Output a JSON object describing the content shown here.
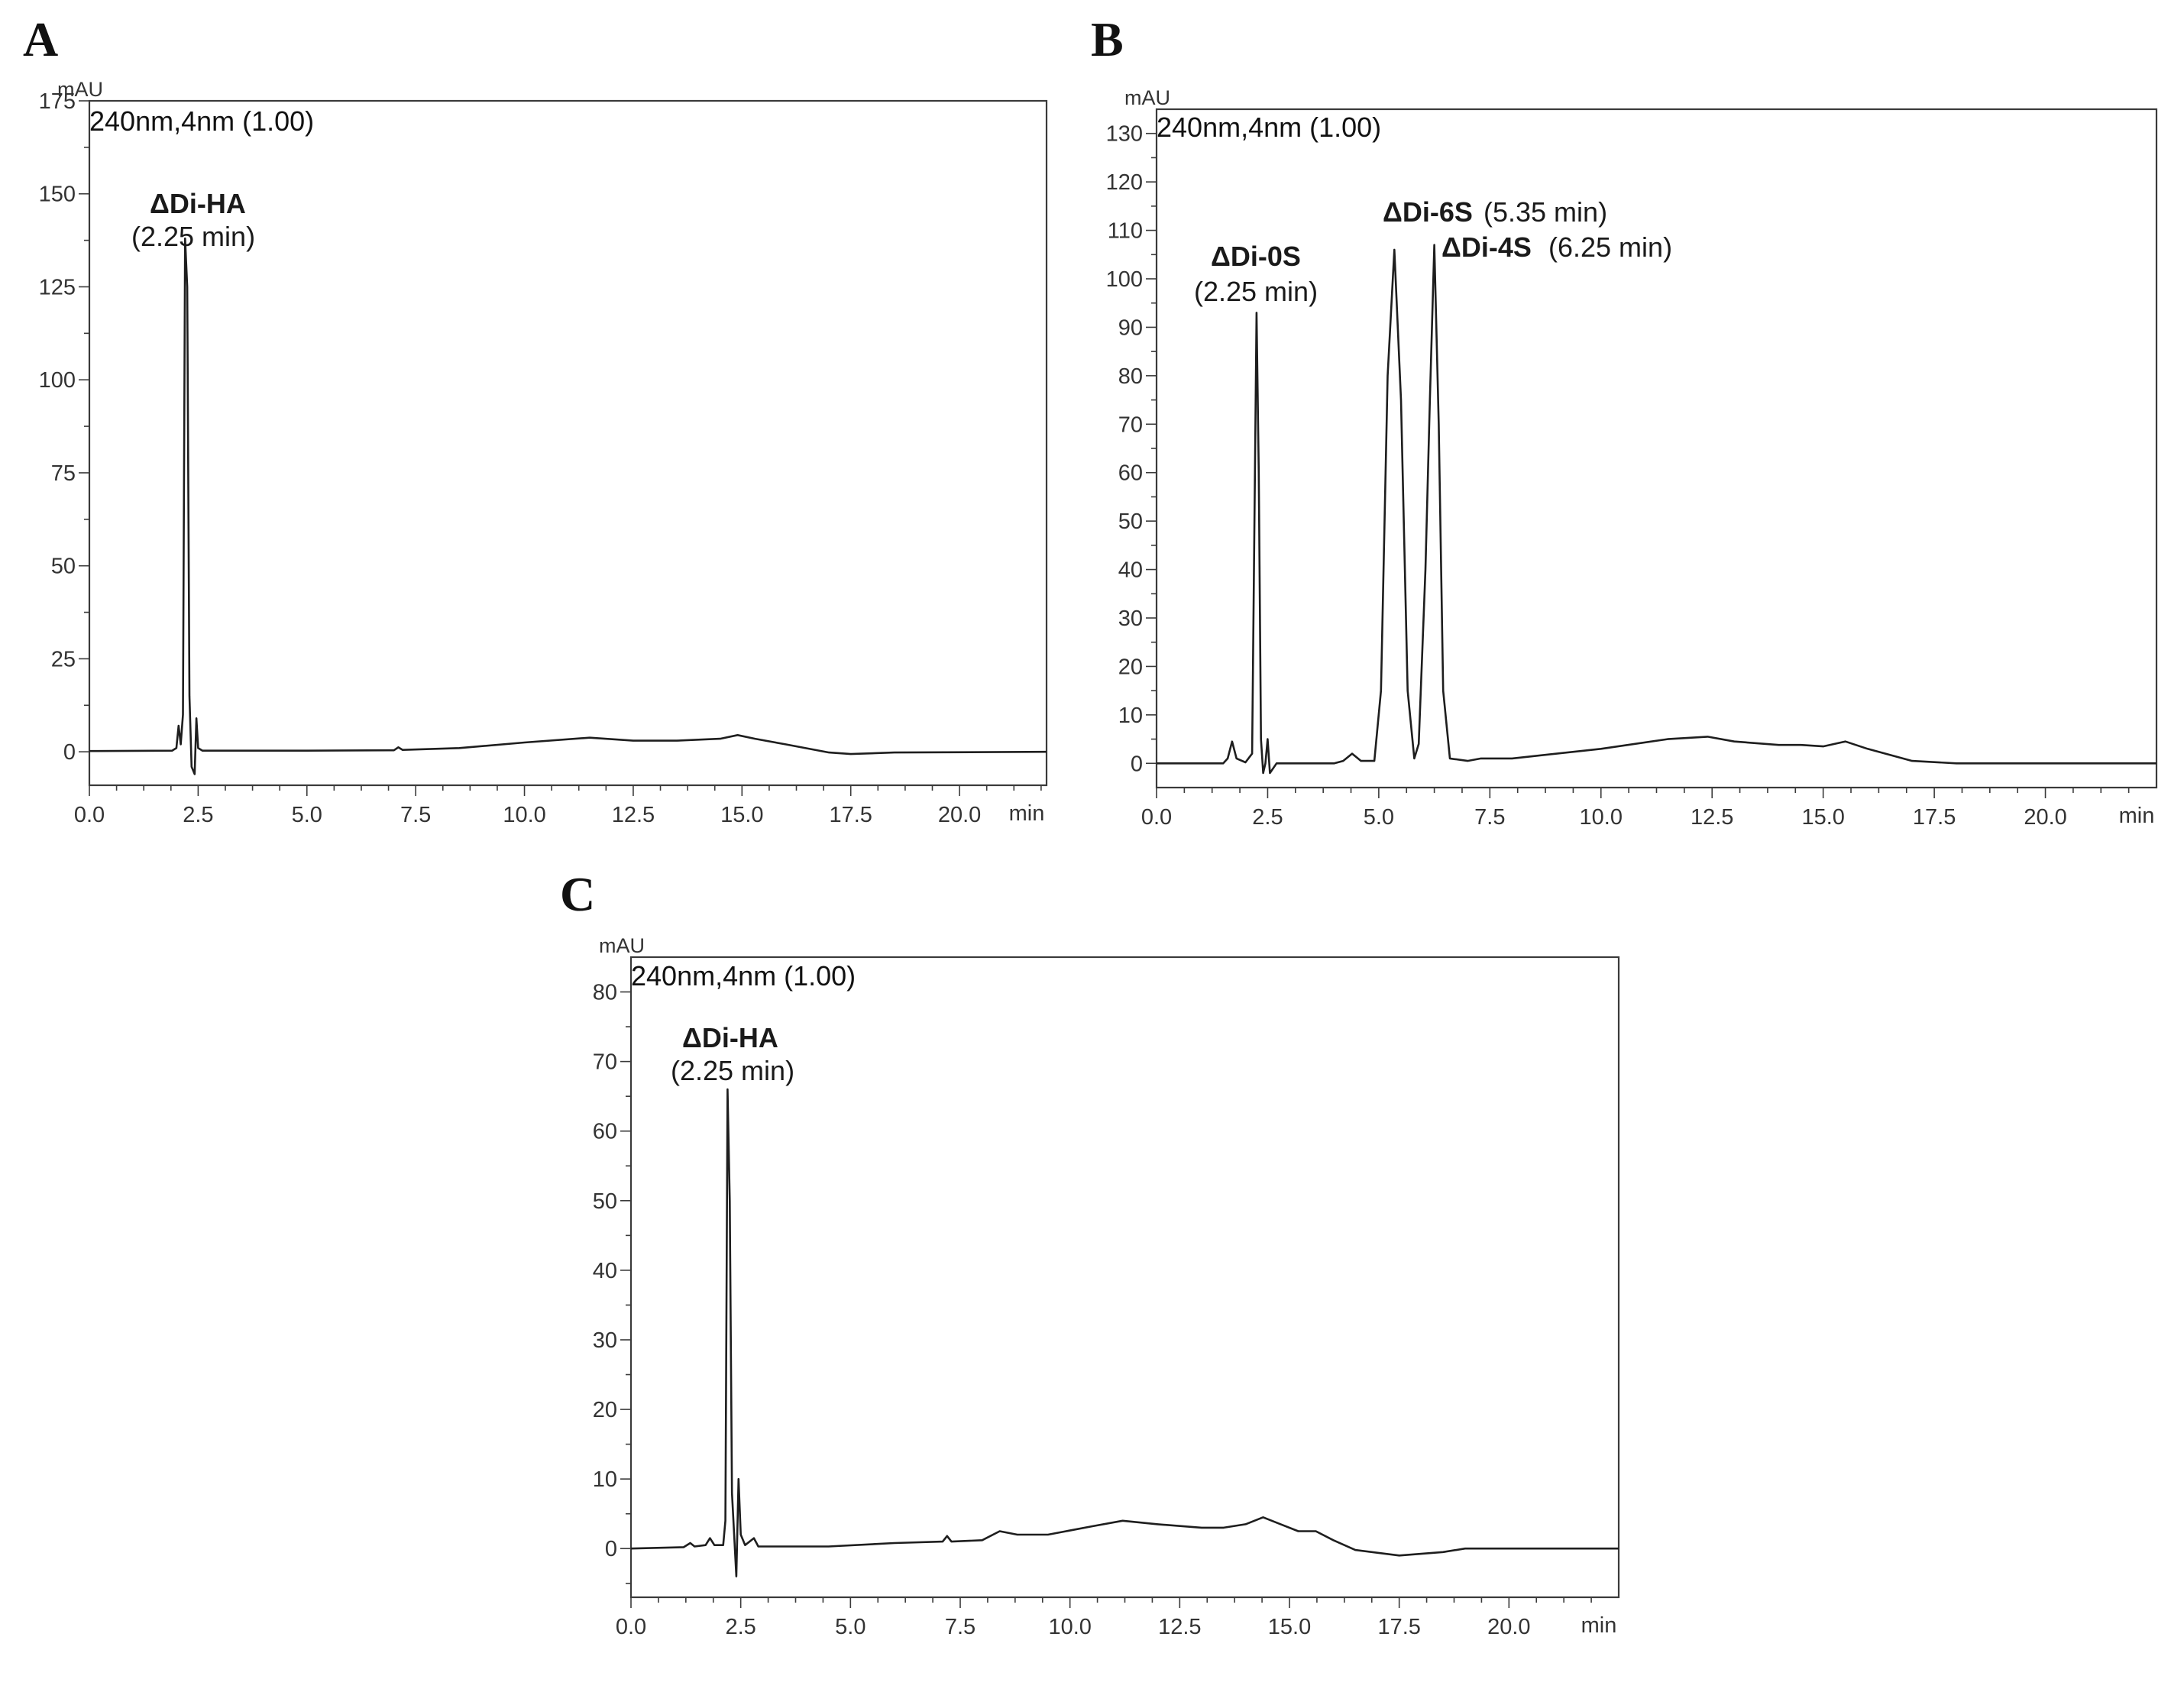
{
  "chart_data": [
    {
      "panel": "A",
      "type": "line",
      "channel": "240nm,4nm (1.00)",
      "y_unit": "mAU",
      "x_unit": "min",
      "xlim": [
        0,
        22.0
      ],
      "ylim": [
        -9,
        175
      ],
      "x_ticks": [
        0,
        2.5,
        5,
        7.5,
        10,
        12.5,
        15,
        17.5,
        20
      ],
      "x_tick_labels": [
        "0.0",
        "2.5",
        "5.0",
        "7.5",
        "10.0",
        "12.5",
        "15.0",
        "17.5",
        "20.0"
      ],
      "y_ticks": [
        0,
        25,
        50,
        75,
        100,
        125,
        150,
        175
      ],
      "y_tick_labels": [
        "0",
        "25",
        "50",
        "75",
        "100",
        "125",
        "150",
        "175"
      ],
      "annotations": [
        {
          "name": "ΔDi-HA",
          "time": "(2.25 min)"
        }
      ],
      "series": [
        {
          "values": [
            [
              0,
              0.2
            ],
            [
              1.9,
              0.3
            ],
            [
              2.0,
              1
            ],
            [
              2.05,
              7
            ],
            [
              2.1,
              2
            ],
            [
              2.15,
              10
            ],
            [
              2.2,
              138
            ],
            [
              2.25,
              125
            ],
            [
              2.3,
              15
            ],
            [
              2.35,
              -4
            ],
            [
              2.42,
              -6
            ],
            [
              2.46,
              9
            ],
            [
              2.5,
              1
            ],
            [
              2.6,
              0.3
            ],
            [
              5,
              0.3
            ],
            [
              7.0,
              0.4
            ],
            [
              7.1,
              1.2
            ],
            [
              7.2,
              0.5
            ],
            [
              8.5,
              1
            ],
            [
              10,
              2.5
            ],
            [
              11.5,
              3.8
            ],
            [
              12.5,
              3
            ],
            [
              13.5,
              3
            ],
            [
              14.5,
              3.5
            ],
            [
              14.9,
              4.5
            ],
            [
              15.3,
              3.5
            ],
            [
              16,
              2
            ],
            [
              17,
              -0.2
            ],
            [
              17.5,
              -0.6
            ],
            [
              18.5,
              -0.2
            ],
            [
              22,
              0
            ]
          ]
        }
      ]
    },
    {
      "panel": "B",
      "type": "line",
      "channel": "240nm,4nm (1.00)",
      "y_unit": "mAU",
      "x_unit": "min",
      "xlim": [
        0,
        22.5
      ],
      "ylim": [
        -5,
        135
      ],
      "x_ticks": [
        0,
        2.5,
        5,
        7.5,
        10,
        12.5,
        15,
        17.5,
        20
      ],
      "x_tick_labels": [
        "0.0",
        "2.5",
        "5.0",
        "7.5",
        "10.0",
        "12.5",
        "15.0",
        "17.5",
        "20.0"
      ],
      "y_ticks": [
        0,
        10,
        20,
        30,
        40,
        50,
        60,
        70,
        80,
        90,
        100,
        110,
        120,
        130
      ],
      "y_tick_labels": [
        "0",
        "10",
        "20",
        "30",
        "40",
        "50",
        "60",
        "70",
        "80",
        "90",
        "100",
        "110",
        "120",
        "130"
      ],
      "annotations": [
        {
          "name": "ΔDi-0S",
          "time": "(2.25 min)"
        },
        {
          "name": "ΔDi-6S",
          "time": "(5.35 min)"
        },
        {
          "name": "ΔDi-4S",
          "time": "(6.25 min)"
        }
      ],
      "series": [
        {
          "values": [
            [
              0,
              0
            ],
            [
              1.5,
              0
            ],
            [
              1.6,
              1
            ],
            [
              1.7,
              4.5
            ],
            [
              1.8,
              1
            ],
            [
              2.0,
              0.2
            ],
            [
              2.15,
              2
            ],
            [
              2.25,
              93
            ],
            [
              2.3,
              60
            ],
            [
              2.35,
              5
            ],
            [
              2.4,
              -2
            ],
            [
              2.45,
              0
            ],
            [
              2.5,
              5
            ],
            [
              2.55,
              -2
            ],
            [
              2.7,
              0
            ],
            [
              4,
              0
            ],
            [
              4.2,
              0.5
            ],
            [
              4.4,
              2
            ],
            [
              4.6,
              0.5
            ],
            [
              4.9,
              0.5
            ],
            [
              5.05,
              15
            ],
            [
              5.2,
              80
            ],
            [
              5.35,
              106
            ],
            [
              5.5,
              75
            ],
            [
              5.65,
              15
            ],
            [
              5.8,
              1
            ],
            [
              5.9,
              4
            ],
            [
              6.05,
              40
            ],
            [
              6.15,
              75
            ],
            [
              6.25,
              107
            ],
            [
              6.35,
              70
            ],
            [
              6.45,
              15
            ],
            [
              6.6,
              1
            ],
            [
              7,
              0.5
            ],
            [
              7.3,
              1
            ],
            [
              8,
              1
            ],
            [
              10,
              3
            ],
            [
              11.5,
              5
            ],
            [
              12.4,
              5.5
            ],
            [
              13,
              4.5
            ],
            [
              14,
              3.8
            ],
            [
              14.5,
              3.8
            ],
            [
              15,
              3.5
            ],
            [
              15.5,
              4.5
            ],
            [
              16,
              3
            ],
            [
              17,
              0.5
            ],
            [
              18,
              0
            ],
            [
              22.5,
              0
            ]
          ]
        }
      ]
    },
    {
      "panel": "C",
      "type": "line",
      "channel": "240nm,4nm (1.00)",
      "y_unit": "mAU",
      "x_unit": "min",
      "xlim": [
        0,
        22.5
      ],
      "ylim": [
        -7,
        85
      ],
      "x_ticks": [
        0,
        2.5,
        5,
        7.5,
        10,
        12.5,
        15,
        17.5,
        20
      ],
      "x_tick_labels": [
        "0.0",
        "2.5",
        "5.0",
        "7.5",
        "10.0",
        "12.5",
        "15.0",
        "17.5",
        "20.0"
      ],
      "y_ticks": [
        0,
        10,
        20,
        30,
        40,
        50,
        60,
        70,
        80
      ],
      "y_tick_labels": [
        "0",
        "10",
        "20",
        "30",
        "40",
        "50",
        "60",
        "70",
        "80"
      ],
      "annotations": [
        {
          "name": "ΔDi-HA",
          "time": "(2.25 min)"
        }
      ],
      "series": [
        {
          "values": [
            [
              0,
              0
            ],
            [
              1.2,
              0.2
            ],
            [
              1.35,
              0.8
            ],
            [
              1.45,
              0.3
            ],
            [
              1.7,
              0.5
            ],
            [
              1.8,
              1.5
            ],
            [
              1.9,
              0.5
            ],
            [
              2.1,
              0.5
            ],
            [
              2.15,
              4
            ],
            [
              2.2,
              66
            ],
            [
              2.25,
              50
            ],
            [
              2.3,
              8
            ],
            [
              2.4,
              -4
            ],
            [
              2.45,
              10
            ],
            [
              2.5,
              2
            ],
            [
              2.6,
              0.5
            ],
            [
              2.8,
              1.5
            ],
            [
              2.9,
              0.3
            ],
            [
              4.5,
              0.3
            ],
            [
              6,
              0.8
            ],
            [
              7.1,
              1
            ],
            [
              7.2,
              1.8
            ],
            [
              7.3,
              1
            ],
            [
              8,
              1.2
            ],
            [
              8.4,
              2.5
            ],
            [
              8.8,
              2
            ],
            [
              9.5,
              2
            ],
            [
              10.5,
              3.2
            ],
            [
              11.2,
              4
            ],
            [
              12,
              3.5
            ],
            [
              13,
              3
            ],
            [
              13.5,
              3
            ],
            [
              14,
              3.5
            ],
            [
              14.4,
              4.5
            ],
            [
              14.8,
              3.5
            ],
            [
              15.2,
              2.5
            ],
            [
              15.6,
              2.5
            ],
            [
              16,
              1.2
            ],
            [
              16.5,
              -0.2
            ],
            [
              17.5,
              -1
            ],
            [
              18.5,
              -0.5
            ],
            [
              19,
              0
            ],
            [
              22.5,
              0
            ]
          ]
        }
      ]
    }
  ]
}
